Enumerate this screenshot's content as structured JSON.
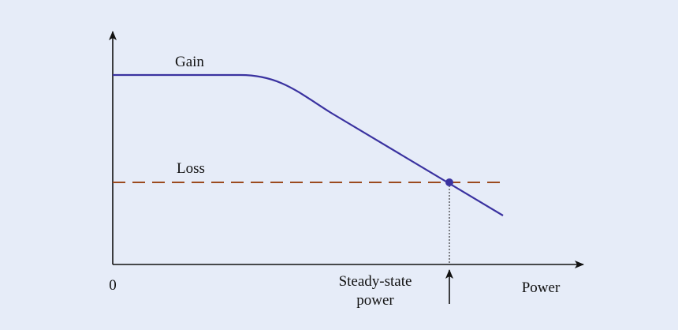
{
  "diagram": {
    "curves": [
      {
        "label": "Gain"
      },
      {
        "label": "Loss"
      }
    ],
    "origin_label": "0",
    "x_axis_label": "Power",
    "marker_label": [
      "Steady-state",
      "power"
    ]
  }
}
